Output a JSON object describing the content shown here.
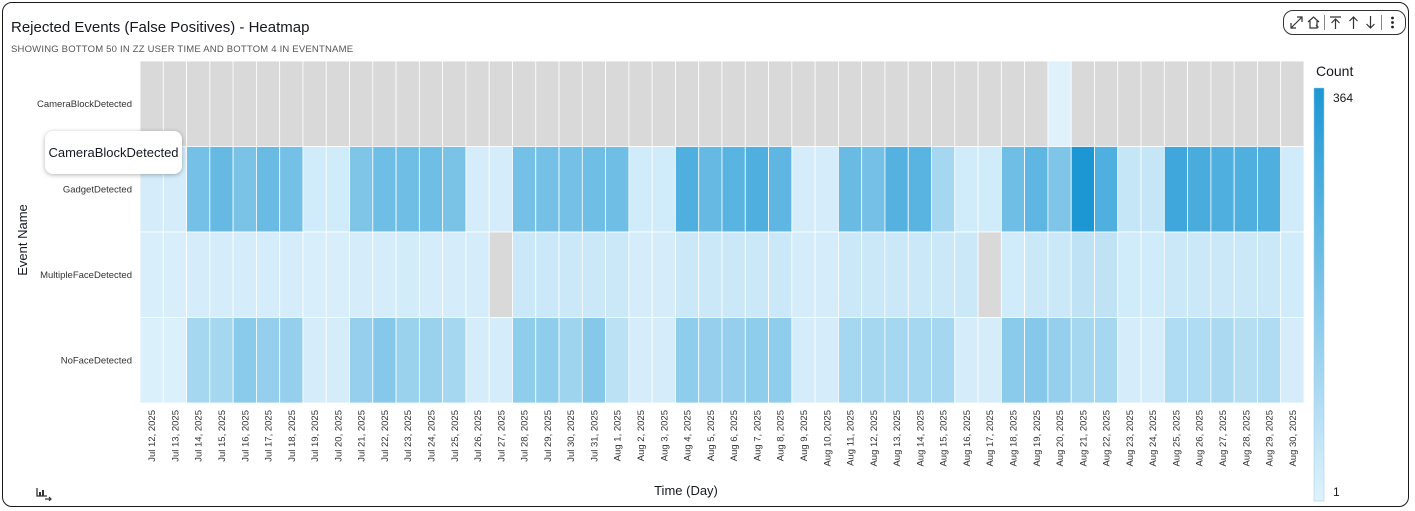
{
  "header": {
    "title": "Rejected Events (False Positives) - Heatmap",
    "subtitle": "SHOWING BOTTOM 50 IN ZZ USER TIME AND BOTTOM 4 IN EVENTNAME"
  },
  "toolbar": {
    "icons": [
      "expand-icon",
      "drill-up-icon",
      "go-to-top-level-icon",
      "drill-up-one-level-icon",
      "drill-down-icon",
      "more-options-icon"
    ]
  },
  "tooltip": {
    "text": "CameraBlockDetected"
  },
  "legend": {
    "title": "Count",
    "max_label": "364",
    "min_label": "1"
  },
  "colors": {
    "scale_low": "#dff2fc",
    "scale_high": "#1d97d4",
    "missing": "#d9d9d9",
    "grid": "#ffffff"
  },
  "chart_data": {
    "type": "heatmap",
    "title": "Rejected Events (False Positives) - Heatmap",
    "xlabel": "Time (Day)",
    "ylabel": "Event Name",
    "x": [
      "Jul 12, 2025",
      "Jul 13, 2025",
      "Jul 14, 2025",
      "Jul 15, 2025",
      "Jul 16, 2025",
      "Jul 17, 2025",
      "Jul 18, 2025",
      "Jul 19, 2025",
      "Jul 20, 2025",
      "Jul 21, 2025",
      "Jul 22, 2025",
      "Jul 23, 2025",
      "Jul 24, 2025",
      "Jul 25, 2025",
      "Jul 26, 2025",
      "Jul 27, 2025",
      "Jul 28, 2025",
      "Jul 29, 2025",
      "Jul 30, 2025",
      "Jul 31, 2025",
      "Aug 1, 2025",
      "Aug 2, 2025",
      "Aug 3, 2025",
      "Aug 4, 2025",
      "Aug 5, 2025",
      "Aug 6, 2025",
      "Aug 7, 2025",
      "Aug 8, 2025",
      "Aug 9, 2025",
      "Aug 10, 2025",
      "Aug 11, 2025",
      "Aug 12, 2025",
      "Aug 13, 2025",
      "Aug 14, 2025",
      "Aug 15, 2025",
      "Aug 16, 2025",
      "Aug 17, 2025",
      "Aug 18, 2025",
      "Aug 19, 2025",
      "Aug 20, 2025",
      "Aug 21, 2025",
      "Aug 22, 2025",
      "Aug 23, 2025",
      "Aug 24, 2025",
      "Aug 25, 2025",
      "Aug 26, 2025",
      "Aug 27, 2025",
      "Aug 28, 2025",
      "Aug 29, 2025",
      "Aug 30, 2025"
    ],
    "y": [
      "CameraBlockDetected",
      "GadgetDetected",
      "MultipleFaceDetected",
      "NoFaceDetected"
    ],
    "values": [
      [
        null,
        null,
        null,
        null,
        null,
        null,
        null,
        null,
        null,
        null,
        null,
        null,
        null,
        null,
        null,
        null,
        null,
        null,
        null,
        null,
        null,
        null,
        null,
        null,
        null,
        null,
        null,
        null,
        null,
        null,
        null,
        null,
        null,
        null,
        null,
        null,
        null,
        null,
        null,
        1,
        null,
        null,
        null,
        null,
        null,
        null,
        null,
        null,
        null,
        null
      ],
      [
        20,
        20,
        200,
        230,
        190,
        220,
        200,
        30,
        30,
        180,
        210,
        210,
        210,
        190,
        20,
        20,
        200,
        200,
        200,
        210,
        210,
        30,
        30,
        270,
        230,
        250,
        270,
        240,
        20,
        20,
        220,
        200,
        260,
        250,
        110,
        30,
        30,
        210,
        240,
        180,
        364,
        270,
        50,
        50,
        300,
        280,
        270,
        270,
        270,
        30
      ],
      [
        15,
        15,
        20,
        20,
        20,
        20,
        20,
        15,
        15,
        20,
        20,
        25,
        20,
        20,
        20,
        null,
        40,
        40,
        40,
        40,
        40,
        20,
        20,
        40,
        40,
        40,
        40,
        40,
        20,
        20,
        40,
        40,
        40,
        40,
        40,
        40,
        null,
        30,
        40,
        40,
        60,
        60,
        30,
        30,
        40,
        40,
        40,
        40,
        40,
        30
      ],
      [
        10,
        10,
        110,
        110,
        160,
        140,
        140,
        20,
        20,
        140,
        170,
        130,
        130,
        110,
        20,
        20,
        150,
        150,
        120,
        170,
        70,
        20,
        20,
        150,
        140,
        140,
        150,
        150,
        20,
        20,
        110,
        110,
        110,
        110,
        110,
        20,
        20,
        160,
        170,
        140,
        110,
        110,
        20,
        20,
        90,
        90,
        100,
        80,
        90,
        20
      ]
    ],
    "color_range": [
      1,
      364
    ],
    "grid": false,
    "legend_placement": "right"
  }
}
